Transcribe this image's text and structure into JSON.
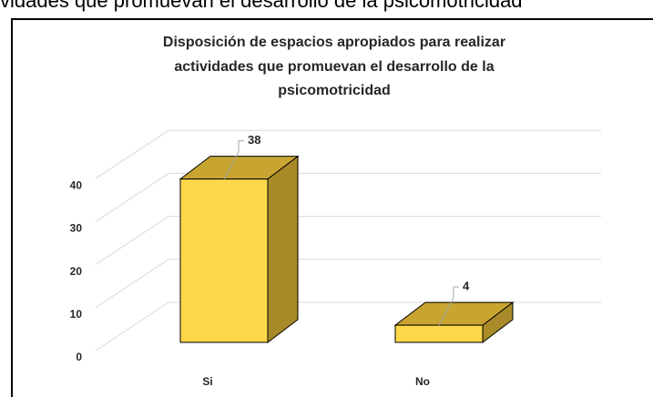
{
  "cropped_heading": "vidades que promuevan el desarrollo de la psicomotricidad",
  "chart_data": {
    "type": "bar3d",
    "title": [
      "Disposición de espacios apropiados para realizar",
      "actividades que promuevan el desarrollo de la",
      "psicomotricidad"
    ],
    "categories": [
      "Si",
      "No"
    ],
    "values": [
      38,
      4
    ],
    "color": "#ffd84a",
    "ylim": [
      0,
      50
    ],
    "yticks": [
      0,
      10,
      20,
      30,
      40
    ],
    "grid": true
  }
}
